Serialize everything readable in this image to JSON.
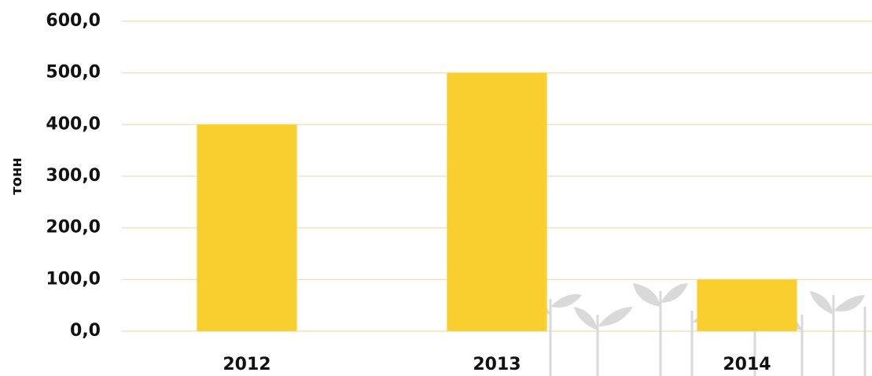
{
  "chart_data": {
    "type": "bar",
    "y_label": "тонн",
    "categories": [
      "2012",
      "2013",
      "2014"
    ],
    "values": [
      400,
      500,
      100
    ],
    "color": "#f9cf2f",
    "ylim": [
      0,
      600
    ],
    "yticks": [
      {
        "value": 0,
        "label": "0,0"
      },
      {
        "value": 100,
        "label": "100,0"
      },
      {
        "value": 200,
        "label": "200,0"
      },
      {
        "value": 300,
        "label": "300,0"
      },
      {
        "value": 400,
        "label": "400,0"
      },
      {
        "value": 500,
        "label": "500,0"
      },
      {
        "value": 600,
        "label": "600,0"
      }
    ],
    "grid": true
  }
}
